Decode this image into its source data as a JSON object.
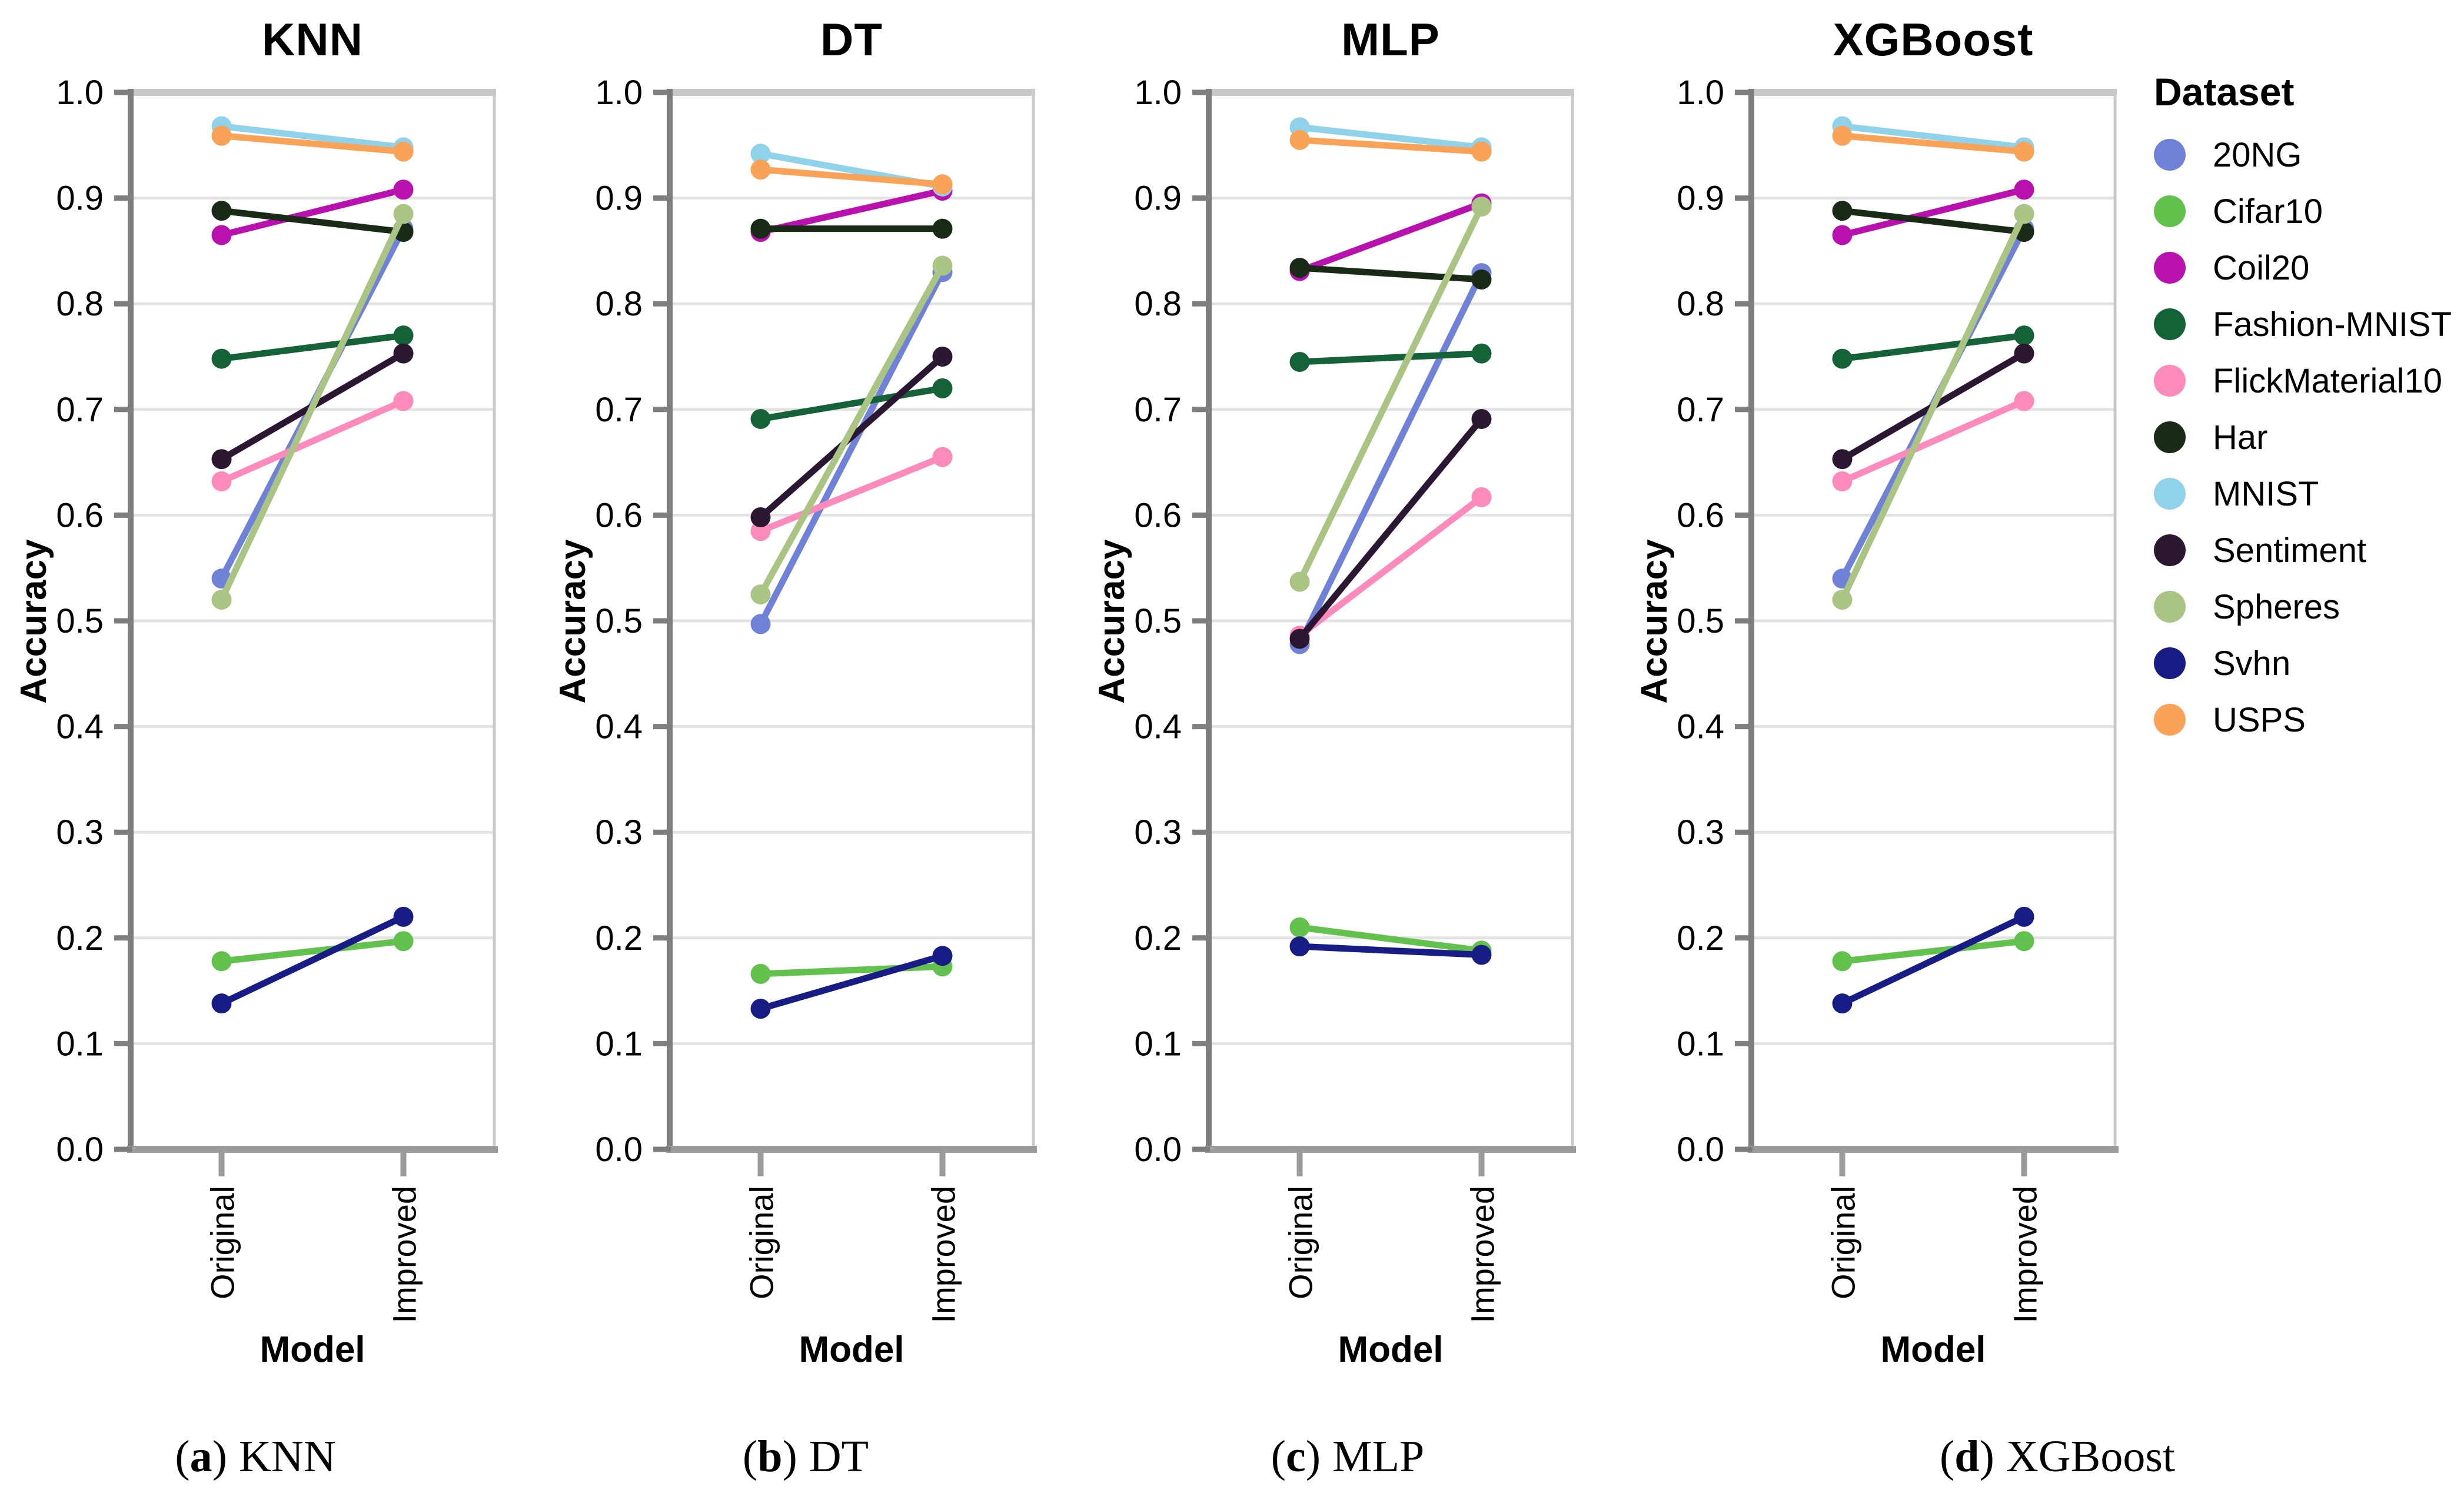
{
  "figure": {
    "background": "#ffffff",
    "grid_color": "#e3e3e3",
    "spine_dark": "#7e7e7e",
    "spine_bottom": "#9b9b9b",
    "spine_light": "#c9c9c9",
    "tick_color": "#7e7e7e"
  },
  "axis": {
    "y_label": "Accuracy",
    "x_label": "Model",
    "y_ticks": [
      "1.0",
      "0.9",
      "0.8",
      "0.7",
      "0.6",
      "0.5",
      "0.4",
      "0.3",
      "0.2",
      "0.1",
      "0.0"
    ],
    "categories": [
      "Original",
      "Improved"
    ]
  },
  "legend": {
    "title": "Dataset",
    "items": [
      {
        "label": "20NG",
        "color": "#7082d8"
      },
      {
        "label": "Cifar10",
        "color": "#63c14e"
      },
      {
        "label": "Coil20",
        "color": "#b811ae"
      },
      {
        "label": "Fashion-MNIST",
        "color": "#156239"
      },
      {
        "label": "FlickMaterial10",
        "color": "#fc8abb"
      },
      {
        "label": "Har",
        "color": "#192b17"
      },
      {
        "label": "MNIST",
        "color": "#90d2ea"
      },
      {
        "label": "Sentiment",
        "color": "#2c1733"
      },
      {
        "label": "Spheres",
        "color": "#a9c483"
      },
      {
        "label": "Svhn",
        "color": "#181d86"
      },
      {
        "label": "USPS",
        "color": "#f8a357"
      }
    ]
  },
  "captions": {
    "paren_open": "(",
    "paren_close": ")"
  },
  "panels": [
    {
      "title": "KNN",
      "caption_letter": "a",
      "caption_label": "KNN"
    },
    {
      "title": "DT",
      "caption_letter": "b",
      "caption_label": "DT"
    },
    {
      "title": "MLP",
      "caption_letter": "c",
      "caption_label": "MLP"
    },
    {
      "title": "XGBoost",
      "caption_letter": "d",
      "caption_label": "XGBoost"
    }
  ],
  "chart_data": [
    {
      "type": "line",
      "title": "KNN",
      "xlabel": "Model",
      "ylabel": "Accuracy",
      "categories": [
        "Original",
        "Improved"
      ],
      "ylim": [
        0.0,
        1.0
      ],
      "grid": true,
      "legend_position": "right-of-figure",
      "series": [
        {
          "name": "20NG",
          "values": [
            0.54,
            0.871
          ]
        },
        {
          "name": "Cifar10",
          "values": [
            0.178,
            0.197
          ]
        },
        {
          "name": "Coil20",
          "values": [
            0.865,
            0.908
          ]
        },
        {
          "name": "Fashion-MNIST",
          "values": [
            0.748,
            0.77
          ]
        },
        {
          "name": "FlickMaterial10",
          "values": [
            0.632,
            0.708
          ]
        },
        {
          "name": "Har",
          "values": [
            0.888,
            0.868
          ]
        },
        {
          "name": "MNIST",
          "values": [
            0.968,
            0.948
          ]
        },
        {
          "name": "Sentiment",
          "values": [
            0.653,
            0.753
          ]
        },
        {
          "name": "Spheres",
          "values": [
            0.52,
            0.885
          ]
        },
        {
          "name": "Svhn",
          "values": [
            0.138,
            0.22
          ]
        },
        {
          "name": "USPS",
          "values": [
            0.959,
            0.944
          ]
        }
      ]
    },
    {
      "type": "line",
      "title": "DT",
      "xlabel": "Model",
      "ylabel": "Accuracy",
      "categories": [
        "Original",
        "Improved"
      ],
      "ylim": [
        0.0,
        1.0
      ],
      "grid": true,
      "legend_position": "right-of-figure",
      "series": [
        {
          "name": "20NG",
          "values": [
            0.497,
            0.83
          ]
        },
        {
          "name": "Cifar10",
          "values": [
            0.166,
            0.173
          ]
        },
        {
          "name": "Coil20",
          "values": [
            0.868,
            0.907
          ]
        },
        {
          "name": "Fashion-MNIST",
          "values": [
            0.691,
            0.72
          ]
        },
        {
          "name": "FlickMaterial10",
          "values": [
            0.585,
            0.655
          ]
        },
        {
          "name": "Har",
          "values": [
            0.871,
            0.871
          ]
        },
        {
          "name": "MNIST",
          "values": [
            0.942,
            0.911
          ]
        },
        {
          "name": "Sentiment",
          "values": [
            0.598,
            0.75
          ]
        },
        {
          "name": "Spheres",
          "values": [
            0.525,
            0.836
          ]
        },
        {
          "name": "Svhn",
          "values": [
            0.133,
            0.183
          ]
        },
        {
          "name": "USPS",
          "values": [
            0.927,
            0.913
          ]
        }
      ]
    },
    {
      "type": "line",
      "title": "MLP",
      "xlabel": "Model",
      "ylabel": "Accuracy",
      "categories": [
        "Original",
        "Improved"
      ],
      "ylim": [
        0.0,
        1.0
      ],
      "grid": true,
      "legend_position": "right-of-figure",
      "series": [
        {
          "name": "20NG",
          "values": [
            0.478,
            0.829
          ]
        },
        {
          "name": "Cifar10",
          "values": [
            0.21,
            0.188
          ]
        },
        {
          "name": "Coil20",
          "values": [
            0.831,
            0.895
          ]
        },
        {
          "name": "Fashion-MNIST",
          "values": [
            0.745,
            0.753
          ]
        },
        {
          "name": "FlickMaterial10",
          "values": [
            0.486,
            0.617
          ]
        },
        {
          "name": "Har",
          "values": [
            0.834,
            0.823
          ]
        },
        {
          "name": "MNIST",
          "values": [
            0.967,
            0.948
          ]
        },
        {
          "name": "Sentiment",
          "values": [
            0.483,
            0.691
          ]
        },
        {
          "name": "Spheres",
          "values": [
            0.537,
            0.892
          ]
        },
        {
          "name": "Svhn",
          "values": [
            0.192,
            0.184
          ]
        },
        {
          "name": "USPS",
          "values": [
            0.955,
            0.944
          ]
        }
      ]
    },
    {
      "type": "line",
      "title": "XGBoost",
      "xlabel": "Model",
      "ylabel": "Accuracy",
      "categories": [
        "Original",
        "Improved"
      ],
      "ylim": [
        0.0,
        1.0
      ],
      "grid": true,
      "legend_position": "right-of-figure",
      "series": [
        {
          "name": "20NG",
          "values": [
            0.54,
            0.871
          ]
        },
        {
          "name": "Cifar10",
          "values": [
            0.178,
            0.197
          ]
        },
        {
          "name": "Coil20",
          "values": [
            0.865,
            0.908
          ]
        },
        {
          "name": "Fashion-MNIST",
          "values": [
            0.748,
            0.77
          ]
        },
        {
          "name": "FlickMaterial10",
          "values": [
            0.632,
            0.708
          ]
        },
        {
          "name": "Har",
          "values": [
            0.888,
            0.868
          ]
        },
        {
          "name": "MNIST",
          "values": [
            0.968,
            0.948
          ]
        },
        {
          "name": "Sentiment",
          "values": [
            0.653,
            0.753
          ]
        },
        {
          "name": "Spheres",
          "values": [
            0.52,
            0.885
          ]
        },
        {
          "name": "Svhn",
          "values": [
            0.138,
            0.22
          ]
        },
        {
          "name": "USPS",
          "values": [
            0.959,
            0.944
          ]
        }
      ]
    }
  ]
}
